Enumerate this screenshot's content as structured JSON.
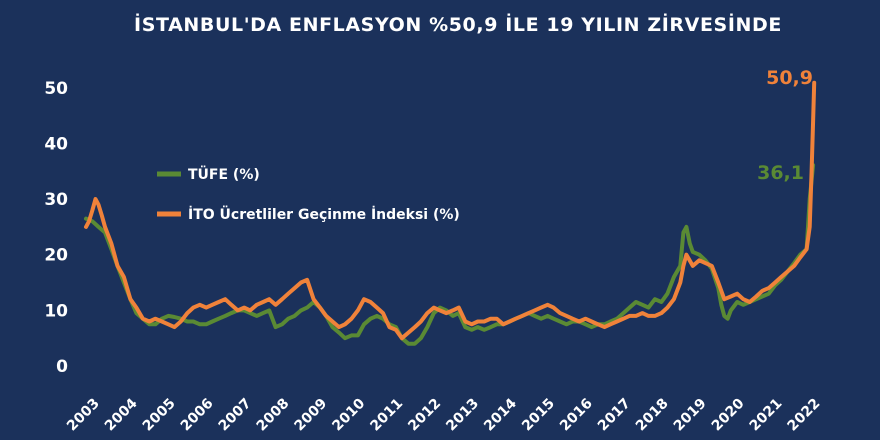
{
  "colors": {
    "background": "#1b315b",
    "tufe": "#5a8a34",
    "ito": "#f0823a",
    "text": "#ffffff"
  },
  "chart_data": {
    "type": "line",
    "title": "İSTANBUL'DA ENFLASYON %50,9 İLE 19 YILIN ZİRVESİNDE",
    "xlabel": "",
    "ylabel": "",
    "ylim": [
      0,
      55
    ],
    "yticks": [
      "0",
      "10",
      "20",
      "30",
      "40",
      "50"
    ],
    "xticks": [
      "2003",
      "2004",
      "2005",
      "2006",
      "2007",
      "2008",
      "2009",
      "2010",
      "2011",
      "2012",
      "2013",
      "2014",
      "2015",
      "2016",
      "2017",
      "2018",
      "2019",
      "2020",
      "2021",
      "2022"
    ],
    "xlim": [
      2003.0,
      2022.3
    ],
    "grid": false,
    "legend": "center-left",
    "series": [
      {
        "name": "TÜFE (%)",
        "color": "#5a8a34",
        "end_label": "36,1",
        "points": [
          [
            2003.0,
            26.5
          ],
          [
            2003.17,
            26.0
          ],
          [
            2003.33,
            25.0
          ],
          [
            2003.5,
            24.0
          ],
          [
            2003.67,
            21.0
          ],
          [
            2003.83,
            18.0
          ],
          [
            2004.0,
            15.0
          ],
          [
            2004.17,
            12.0
          ],
          [
            2004.33,
            9.5
          ],
          [
            2004.5,
            8.5
          ],
          [
            2004.67,
            7.5
          ],
          [
            2004.83,
            7.5
          ],
          [
            2005.0,
            8.5
          ],
          [
            2005.17,
            9.0
          ],
          [
            2005.33,
            8.8
          ],
          [
            2005.5,
            8.5
          ],
          [
            2005.67,
            8.0
          ],
          [
            2005.83,
            8.0
          ],
          [
            2006.0,
            7.5
          ],
          [
            2006.17,
            7.5
          ],
          [
            2006.33,
            8.0
          ],
          [
            2006.5,
            8.5
          ],
          [
            2006.67,
            9.0
          ],
          [
            2006.83,
            9.5
          ],
          [
            2007.0,
            10.0
          ],
          [
            2007.17,
            10.0
          ],
          [
            2007.33,
            9.5
          ],
          [
            2007.5,
            9.0
          ],
          [
            2007.67,
            9.5
          ],
          [
            2007.83,
            10.0
          ],
          [
            2008.0,
            7.0
          ],
          [
            2008.17,
            7.5
          ],
          [
            2008.33,
            8.5
          ],
          [
            2008.5,
            9.0
          ],
          [
            2008.67,
            10.0
          ],
          [
            2008.83,
            10.5
          ],
          [
            2009.0,
            11.5
          ],
          [
            2009.17,
            10.5
          ],
          [
            2009.33,
            9.0
          ],
          [
            2009.5,
            7.0
          ],
          [
            2009.67,
            6.0
          ],
          [
            2009.83,
            5.0
          ],
          [
            2010.0,
            5.5
          ],
          [
            2010.17,
            5.5
          ],
          [
            2010.33,
            7.5
          ],
          [
            2010.5,
            8.5
          ],
          [
            2010.67,
            9.0
          ],
          [
            2010.83,
            8.5
          ],
          [
            2011.0,
            7.5
          ],
          [
            2011.17,
            7.0
          ],
          [
            2011.33,
            5.0
          ],
          [
            2011.5,
            4.0
          ],
          [
            2011.67,
            4.0
          ],
          [
            2011.83,
            5.0
          ],
          [
            2012.0,
            7.0
          ],
          [
            2012.17,
            9.5
          ],
          [
            2012.33,
            10.5
          ],
          [
            2012.5,
            10.0
          ],
          [
            2012.67,
            9.0
          ],
          [
            2012.83,
            9.5
          ],
          [
            2013.0,
            7.0
          ],
          [
            2013.17,
            6.5
          ],
          [
            2013.33,
            7.0
          ],
          [
            2013.5,
            6.5
          ],
          [
            2013.67,
            7.0
          ],
          [
            2013.83,
            7.5
          ],
          [
            2014.0,
            7.5
          ],
          [
            2014.17,
            8.0
          ],
          [
            2014.33,
            8.5
          ],
          [
            2014.5,
            9.0
          ],
          [
            2014.67,
            9.5
          ],
          [
            2014.83,
            9.0
          ],
          [
            2015.0,
            8.5
          ],
          [
            2015.17,
            9.0
          ],
          [
            2015.33,
            8.5
          ],
          [
            2015.5,
            8.0
          ],
          [
            2015.67,
            7.5
          ],
          [
            2015.83,
            8.0
          ],
          [
            2016.0,
            8.0
          ],
          [
            2016.17,
            7.5
          ],
          [
            2016.33,
            7.0
          ],
          [
            2016.5,
            7.5
          ],
          [
            2016.67,
            7.5
          ],
          [
            2016.83,
            8.0
          ],
          [
            2017.0,
            8.5
          ],
          [
            2017.17,
            9.5
          ],
          [
            2017.33,
            10.5
          ],
          [
            2017.5,
            11.5
          ],
          [
            2017.67,
            11.0
          ],
          [
            2017.83,
            10.5
          ],
          [
            2018.0,
            12.0
          ],
          [
            2018.17,
            11.5
          ],
          [
            2018.33,
            13.0
          ],
          [
            2018.5,
            16.0
          ],
          [
            2018.67,
            18.0
          ],
          [
            2018.75,
            24.0
          ],
          [
            2018.83,
            25.0
          ],
          [
            2018.92,
            22.0
          ],
          [
            2019.0,
            20.5
          ],
          [
            2019.17,
            20.0
          ],
          [
            2019.33,
            19.0
          ],
          [
            2019.5,
            17.5
          ],
          [
            2019.67,
            14.0
          ],
          [
            2019.75,
            11.0
          ],
          [
            2019.83,
            9.0
          ],
          [
            2019.92,
            8.5
          ],
          [
            2020.0,
            10.0
          ],
          [
            2020.17,
            11.5
          ],
          [
            2020.33,
            11.0
          ],
          [
            2020.5,
            11.5
          ],
          [
            2020.67,
            12.0
          ],
          [
            2020.83,
            12.5
          ],
          [
            2021.0,
            13.0
          ],
          [
            2021.17,
            14.5
          ],
          [
            2021.33,
            15.5
          ],
          [
            2021.5,
            17.0
          ],
          [
            2021.67,
            18.5
          ],
          [
            2021.83,
            20.0
          ],
          [
            2022.0,
            21.0
          ],
          [
            2022.08,
            30.0
          ],
          [
            2022.17,
            36.1
          ]
        ]
      },
      {
        "name": "İTO Ücretliler Geçinme İndeksi (%)",
        "color": "#f0823a",
        "end_label": "50,9",
        "points": [
          [
            2003.0,
            25.0
          ],
          [
            2003.08,
            26.0
          ],
          [
            2003.17,
            28.0
          ],
          [
            2003.25,
            30.0
          ],
          [
            2003.33,
            29.0
          ],
          [
            2003.42,
            27.0
          ],
          [
            2003.5,
            25.0
          ],
          [
            2003.67,
            22.0
          ],
          [
            2003.83,
            18.0
          ],
          [
            2004.0,
            16.0
          ],
          [
            2004.17,
            12.0
          ],
          [
            2004.33,
            10.5
          ],
          [
            2004.5,
            8.5
          ],
          [
            2004.67,
            8.0
          ],
          [
            2004.83,
            8.5
          ],
          [
            2005.0,
            8.0
          ],
          [
            2005.17,
            7.5
          ],
          [
            2005.33,
            7.0
          ],
          [
            2005.5,
            8.0
          ],
          [
            2005.67,
            9.5
          ],
          [
            2005.83,
            10.5
          ],
          [
            2006.0,
            11.0
          ],
          [
            2006.17,
            10.5
          ],
          [
            2006.33,
            11.0
          ],
          [
            2006.5,
            11.5
          ],
          [
            2006.67,
            12.0
          ],
          [
            2006.83,
            11.0
          ],
          [
            2007.0,
            10.0
          ],
          [
            2007.17,
            10.5
          ],
          [
            2007.33,
            10.0
          ],
          [
            2007.5,
            11.0
          ],
          [
            2007.67,
            11.5
          ],
          [
            2007.83,
            12.0
          ],
          [
            2008.0,
            11.0
          ],
          [
            2008.17,
            12.0
          ],
          [
            2008.33,
            13.0
          ],
          [
            2008.5,
            14.0
          ],
          [
            2008.67,
            15.0
          ],
          [
            2008.83,
            15.5
          ],
          [
            2009.0,
            12.0
          ],
          [
            2009.17,
            10.5
          ],
          [
            2009.33,
            9.0
          ],
          [
            2009.5,
            8.0
          ],
          [
            2009.67,
            7.0
          ],
          [
            2009.83,
            7.5
          ],
          [
            2010.0,
            8.5
          ],
          [
            2010.17,
            10.0
          ],
          [
            2010.33,
            12.0
          ],
          [
            2010.5,
            11.5
          ],
          [
            2010.67,
            10.5
          ],
          [
            2010.83,
            9.5
          ],
          [
            2011.0,
            7.0
          ],
          [
            2011.17,
            6.5
          ],
          [
            2011.33,
            5.0
          ],
          [
            2011.5,
            6.0
          ],
          [
            2011.67,
            7.0
          ],
          [
            2011.83,
            8.0
          ],
          [
            2012.0,
            9.5
          ],
          [
            2012.17,
            10.5
          ],
          [
            2012.33,
            10.0
          ],
          [
            2012.5,
            9.5
          ],
          [
            2012.67,
            10.0
          ],
          [
            2012.83,
            10.5
          ],
          [
            2013.0,
            8.0
          ],
          [
            2013.17,
            7.5
          ],
          [
            2013.33,
            8.0
          ],
          [
            2013.5,
            8.0
          ],
          [
            2013.67,
            8.5
          ],
          [
            2013.83,
            8.5
          ],
          [
            2014.0,
            7.5
          ],
          [
            2014.17,
            8.0
          ],
          [
            2014.33,
            8.5
          ],
          [
            2014.5,
            9.0
          ],
          [
            2014.67,
            9.5
          ],
          [
            2014.83,
            10.0
          ],
          [
            2015.0,
            10.5
          ],
          [
            2015.17,
            11.0
          ],
          [
            2015.33,
            10.5
          ],
          [
            2015.5,
            9.5
          ],
          [
            2015.67,
            9.0
          ],
          [
            2015.83,
            8.5
          ],
          [
            2016.0,
            8.0
          ],
          [
            2016.17,
            8.5
          ],
          [
            2016.33,
            8.0
          ],
          [
            2016.5,
            7.5
          ],
          [
            2016.67,
            7.0
          ],
          [
            2016.83,
            7.5
          ],
          [
            2017.0,
            8.0
          ],
          [
            2017.17,
            8.5
          ],
          [
            2017.33,
            9.0
          ],
          [
            2017.5,
            9.0
          ],
          [
            2017.67,
            9.5
          ],
          [
            2017.83,
            9.0
          ],
          [
            2018.0,
            9.0
          ],
          [
            2018.17,
            9.5
          ],
          [
            2018.33,
            10.5
          ],
          [
            2018.5,
            12.0
          ],
          [
            2018.67,
            15.0
          ],
          [
            2018.75,
            18.0
          ],
          [
            2018.83,
            20.0
          ],
          [
            2019.0,
            18.0
          ],
          [
            2019.17,
            19.0
          ],
          [
            2019.33,
            18.5
          ],
          [
            2019.5,
            18.0
          ],
          [
            2019.67,
            15.0
          ],
          [
            2019.83,
            12.0
          ],
          [
            2020.0,
            12.5
          ],
          [
            2020.17,
            13.0
          ],
          [
            2020.33,
            12.0
          ],
          [
            2020.5,
            11.5
          ],
          [
            2020.67,
            12.5
          ],
          [
            2020.83,
            13.5
          ],
          [
            2021.0,
            14.0
          ],
          [
            2021.17,
            15.0
          ],
          [
            2021.33,
            16.0
          ],
          [
            2021.5,
            17.0
          ],
          [
            2021.67,
            18.0
          ],
          [
            2021.83,
            19.5
          ],
          [
            2022.0,
            21.0
          ],
          [
            2022.08,
            25.0
          ],
          [
            2022.13,
            35.0
          ],
          [
            2022.17,
            44.0
          ],
          [
            2022.2,
            50.9
          ]
        ]
      }
    ]
  }
}
